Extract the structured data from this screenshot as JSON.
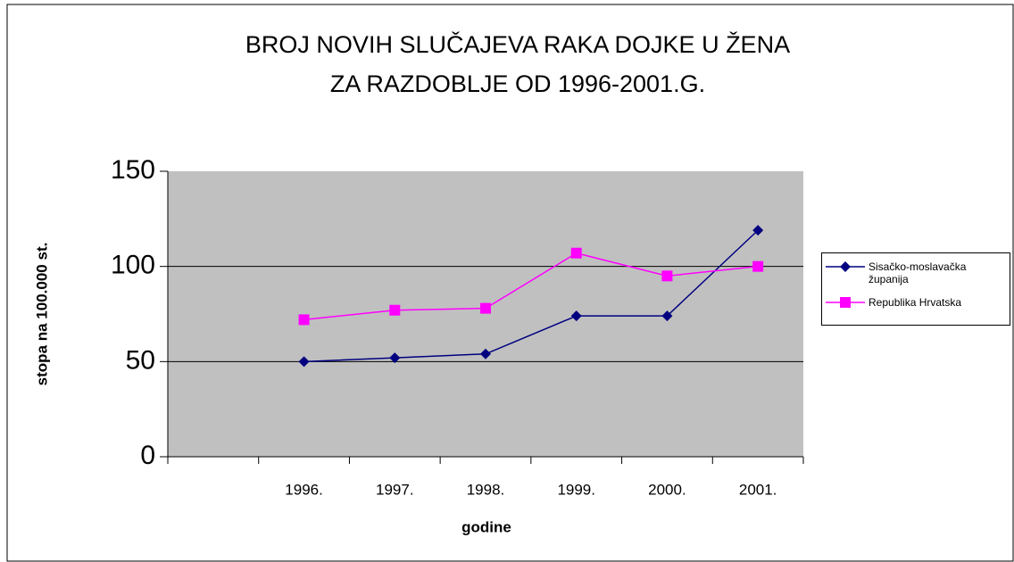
{
  "chart_data": {
    "type": "line",
    "title": [
      "BROJ NOVIH SLUČAJEVA RAKA DOJKE U ŽENA",
      "ZA RAZDOBLJE OD 1996-2001.G."
    ],
    "xlabel": "godine",
    "ylabel": "stopa na 100.000 st.",
    "categories": [
      null,
      "1996.",
      "1997.",
      "1998.",
      "1999.",
      "2000.",
      "2001."
    ],
    "series": [
      {
        "name": "Sisačko-moslavačka županija",
        "color": "#000080",
        "marker": "diamond",
        "values": [
          null,
          50,
          52,
          54,
          74,
          74,
          119
        ]
      },
      {
        "name": "Republika Hrvatska",
        "color": "#ff00ff",
        "marker": "square",
        "values": [
          null,
          72,
          77,
          78,
          107,
          95,
          100
        ]
      }
    ],
    "ylim": [
      0,
      150
    ],
    "yticks": [
      0,
      50,
      100,
      150
    ],
    "grid": true,
    "legend": "right",
    "plot_background": "#c0c0c0"
  }
}
